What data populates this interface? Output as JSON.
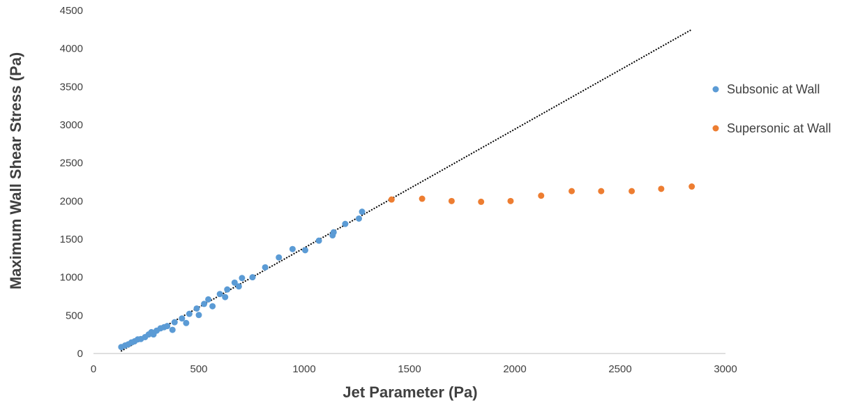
{
  "chart_data": {
    "type": "scatter",
    "xlabel": "Jet Parameter (Pa)",
    "ylabel": "Maximum Wall Shear Stress (Pa)",
    "xlim": [
      0,
      3000
    ],
    "ylim": [
      0,
      4500
    ],
    "x_ticks": [
      "0",
      "500",
      "1000",
      "1500",
      "2000",
      "2500",
      "3000"
    ],
    "y_ticks": [
      "0",
      "500",
      "1000",
      "1500",
      "2000",
      "2500",
      "3000",
      "3500",
      "4000",
      "4500"
    ],
    "grid": false,
    "legend_position": "right",
    "series": [
      {
        "name": "Subsonic at Wall",
        "color": "#5b9bd5",
        "x": [
          132,
          150,
          165,
          180,
          195,
          210,
          225,
          245,
          262,
          275,
          285,
          300,
          318,
          335,
          350,
          375,
          385,
          420,
          440,
          455,
          490,
          500,
          525,
          545,
          565,
          600,
          625,
          635,
          670,
          690,
          705,
          755,
          815,
          880,
          945,
          1005,
          1070,
          1140,
          1135,
          1195,
          1260,
          1275
        ],
        "y": [
          85,
          105,
          120,
          145,
          160,
          185,
          190,
          215,
          250,
          280,
          250,
          300,
          330,
          345,
          360,
          310,
          410,
          460,
          400,
          520,
          590,
          505,
          650,
          710,
          620,
          780,
          740,
          840,
          930,
          880,
          990,
          1000,
          1130,
          1260,
          1370,
          1355,
          1480,
          1590,
          1550,
          1700,
          1770,
          1860
        ]
      },
      {
        "name": "Supersonic at Wall",
        "color": "#ed7d31",
        "x": [
          1415,
          1560,
          1700,
          1840,
          1980,
          2125,
          2270,
          2410,
          2555,
          2695,
          2840
        ],
        "y": [
          2020,
          2030,
          2000,
          1990,
          2000,
          2070,
          2130,
          2130,
          2130,
          2160,
          2190
        ]
      }
    ],
    "trendline": {
      "style": "dotted",
      "color": "#000000",
      "x": [
        130,
        2840
      ],
      "y": [
        30,
        4250
      ]
    }
  }
}
